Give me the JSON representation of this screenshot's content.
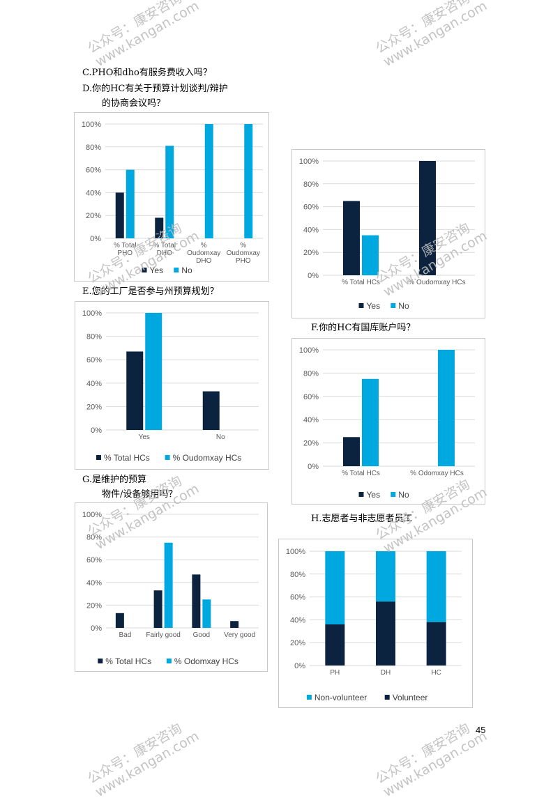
{
  "questions": {
    "c": "C.PHO和dho有服务费收入吗？",
    "d1": "D.你的HC有关于预算计划谈判/辩护",
    "d2": "的协商会议吗？",
    "e": "E.您的工厂是否参与州预算规划？",
    "f": "F.你的HC有国库账户吗？",
    "g1": "G.是维护的预算",
    "g2": "物件/设备够用吗？",
    "h": "H.志愿者与非志愿者员工"
  },
  "page_number": "45",
  "watermark": {
    "line1": "公众号：康安咨询",
    "line2": "www.kangan.com"
  },
  "colors": {
    "dark": "#0c2340",
    "light": "#00a8e0",
    "grid": "#d9d9d9"
  },
  "chart_data": [
    {
      "id": "chartC",
      "type": "bar",
      "categories": [
        [
          "% Total",
          "PHO"
        ],
        [
          "% Total",
          "DHO"
        ],
        [
          "%",
          "Oudomxay",
          "DHO"
        ],
        [
          "%",
          "Oudomxay",
          "PHO"
        ]
      ],
      "series": [
        {
          "name": "Yes",
          "values": [
            40,
            18,
            0,
            0
          ]
        },
        {
          "name": "No",
          "values": [
            60,
            81,
            100,
            100
          ]
        }
      ],
      "yticks": [
        "0%",
        "20%",
        "40%",
        "60%",
        "80%",
        "100%"
      ],
      "ylim": [
        0,
        100
      ]
    },
    {
      "id": "chartD",
      "type": "bar",
      "categories": [
        [
          "% Total HCs"
        ],
        [
          "% Oudomxay HCs"
        ]
      ],
      "series": [
        {
          "name": "Yes",
          "values": [
            65,
            100
          ]
        },
        {
          "name": "No",
          "values": [
            35,
            0
          ]
        }
      ],
      "yticks": [
        "0%",
        "20%",
        "40%",
        "60%",
        "80%",
        "100%"
      ],
      "ylim": [
        0,
        100
      ]
    },
    {
      "id": "chartE",
      "type": "bar",
      "categories": [
        [
          "Yes"
        ],
        [
          "No"
        ]
      ],
      "series": [
        {
          "name": "% Total HCs",
          "values": [
            67,
            33
          ]
        },
        {
          "name": "% Oudomxay HCs",
          "values": [
            100,
            0
          ]
        }
      ],
      "yticks": [
        "0%",
        "20%",
        "40%",
        "60%",
        "80%",
        "100%"
      ],
      "ylim": [
        0,
        100
      ]
    },
    {
      "id": "chartF",
      "type": "bar",
      "categories": [
        [
          "% Total HCs"
        ],
        [
          "% Odomxay HCs"
        ]
      ],
      "series": [
        {
          "name": "Yes",
          "values": [
            25,
            0
          ]
        },
        {
          "name": "No",
          "values": [
            75,
            100
          ]
        }
      ],
      "yticks": [
        "0%",
        "20%",
        "40%",
        "60%",
        "80%",
        "100%"
      ],
      "ylim": [
        0,
        100
      ]
    },
    {
      "id": "chartG",
      "type": "bar",
      "categories": [
        [
          "Bad"
        ],
        [
          "Fairly good"
        ],
        [
          "Good"
        ],
        [
          "Very good"
        ]
      ],
      "series": [
        {
          "name": "% Total HCs",
          "values": [
            13,
            33,
            47,
            6
          ]
        },
        {
          "name": "% Odomxay HCs",
          "values": [
            0,
            75,
            25,
            0
          ]
        }
      ],
      "yticks": [
        "0%",
        "20%",
        "40%",
        "60%",
        "80%",
        "100%"
      ],
      "ylim": [
        0,
        100
      ]
    },
    {
      "id": "chartH",
      "type": "bar",
      "stacked": true,
      "categories": [
        [
          "PH"
        ],
        [
          "DH"
        ],
        [
          "HC"
        ]
      ],
      "series": [
        {
          "name": "Volunteer",
          "values": [
            36,
            56,
            38
          ]
        },
        {
          "name": "Non-volunteer",
          "values": [
            64,
            44,
            62
          ]
        }
      ],
      "legend_order": [
        "Non-volunteer",
        "Volunteer"
      ],
      "yticks": [
        "0%",
        "20%",
        "40%",
        "60%",
        "80%",
        "100%"
      ],
      "ylim": [
        0,
        100
      ]
    }
  ]
}
